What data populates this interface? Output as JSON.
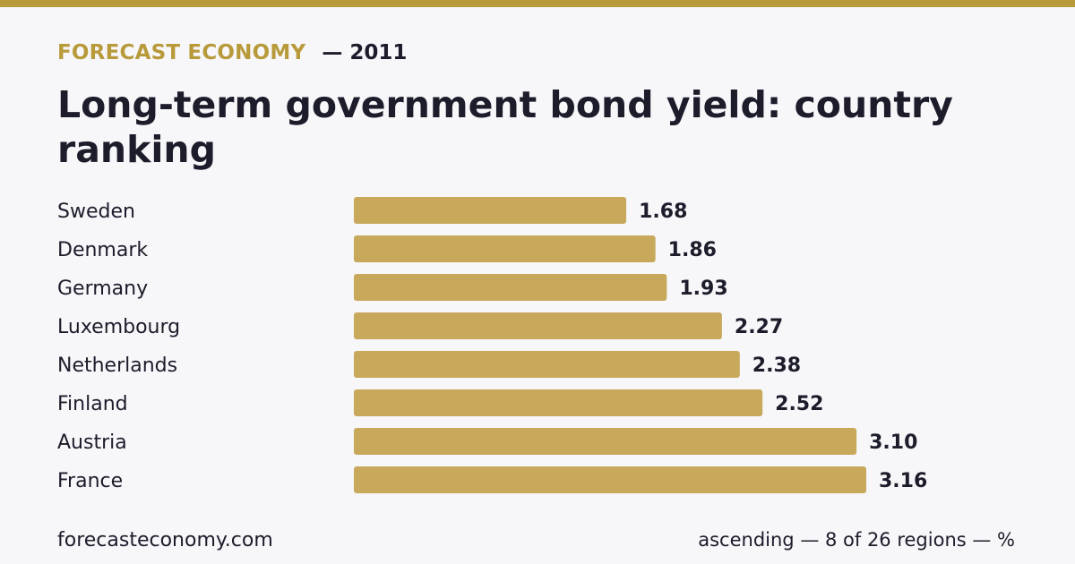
{
  "header": {
    "brand": "FORECAST ECONOMY",
    "year": "— 2011",
    "title": "Long-term government bond yield: country ranking"
  },
  "footer": {
    "source": "forecasteconomy.com",
    "note": "ascending — 8 of 26 regions — %"
  },
  "colors": {
    "accent": "#b89a3b",
    "bar": "#c8a95c",
    "text": "#1c1c2b",
    "background": "#f7f7fa"
  },
  "chart_data": {
    "type": "bar",
    "orientation": "horizontal",
    "categories": [
      "Sweden",
      "Denmark",
      "Germany",
      "Luxembourg",
      "Netherlands",
      "Finland",
      "Austria",
      "France"
    ],
    "values": [
      1.68,
      1.86,
      1.93,
      2.27,
      2.38,
      2.52,
      3.1,
      3.16
    ],
    "value_labels": [
      "1.68",
      "1.86",
      "1.93",
      "2.27",
      "2.38",
      "2.52",
      "3.10",
      "3.16"
    ],
    "xlim": [
      0,
      3.16
    ],
    "grid": false,
    "legend": "none"
  }
}
